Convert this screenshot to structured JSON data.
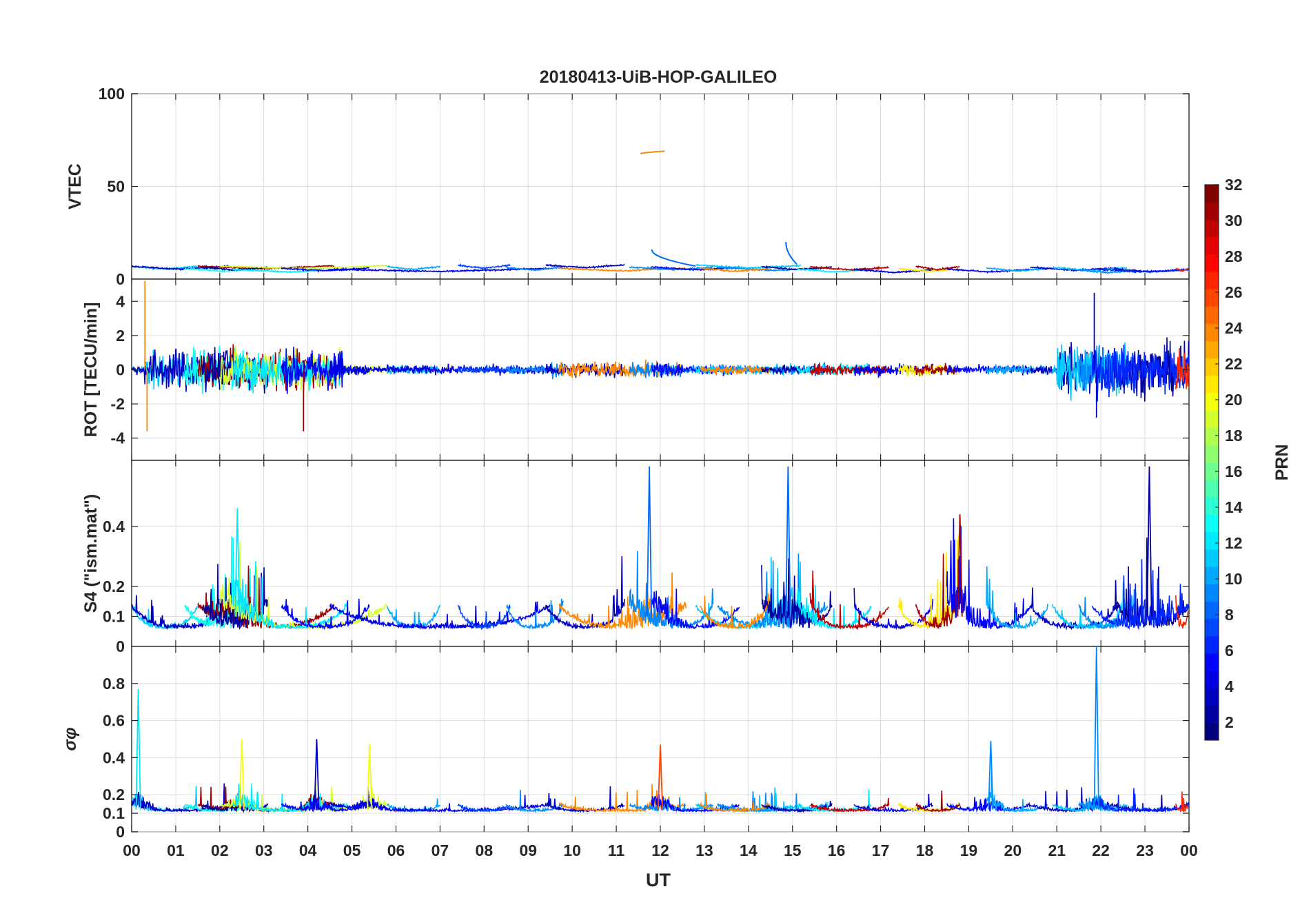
{
  "figure_title": "20180413-UiB-HOP-GALILEO",
  "chart_data": {
    "type": "line",
    "title": "20180413-UiB-HOP-GALILEO",
    "xlabel": "UT",
    "x_range_hours": [
      0,
      24
    ],
    "x_tick_labels": [
      "00",
      "01",
      "02",
      "03",
      "04",
      "05",
      "06",
      "07",
      "08",
      "09",
      "10",
      "11",
      "12",
      "13",
      "14",
      "15",
      "16",
      "17",
      "18",
      "19",
      "20",
      "21",
      "22",
      "23",
      "00"
    ],
    "grid": true,
    "colorbar": {
      "label": "PRN",
      "range": [
        1,
        32
      ],
      "tick_labels": [
        "2",
        "4",
        "6",
        "8",
        "10",
        "12",
        "14",
        "16",
        "18",
        "20",
        "22",
        "24",
        "26",
        "28",
        "30",
        "32"
      ],
      "colormap": "jet",
      "colors": [
        "#00008f",
        "#0000ff",
        "#0080ff",
        "#00ffff",
        "#80ff80",
        "#ffff00",
        "#ff8000",
        "#ff0000",
        "#800000"
      ]
    },
    "panels": [
      {
        "ylabel": "VTEC",
        "ylim": [
          0,
          100
        ],
        "y_tick_labels": [
          "0",
          "50",
          "100"
        ],
        "series_summary": "Background VTEC about 3 to 7 TECU across the day for all PRNs; isolated arc near 68-69 TECU at 11.5-12.1 UT (PRN ~24); arcs peaking near 15-20 TECU at 11.8 UT and 14.9 UT (PRN ~8)",
        "baseline": [
          [
            0,
            4.5
          ],
          [
            12,
            5.5
          ],
          [
            24,
            3.5
          ]
        ],
        "features": [
          {
            "x": [
              11.55,
              12.1
            ],
            "y": [
              67.5,
              69
            ],
            "prn": 24
          },
          {
            "x": [
              11.8,
              12.8
            ],
            "y": [
              16,
              7
            ],
            "prn": 8
          },
          {
            "x": [
              14.85,
              15.1
            ],
            "y": [
              20,
              8
            ],
            "prn": 8
          }
        ]
      },
      {
        "ylabel": "ROT [TECU/min]",
        "ylim": [
          -5.3,
          5.3
        ],
        "y_tick_labels": [
          "-4",
          "-2",
          "0",
          "2",
          "4"
        ],
        "series_summary": "ROT fluctuates around 0; larger activity 01-05 UT (about ±2 to ±3) and 21-23 UT (peak about 4.5 near 21.8 UT); spike to about 5 and -3.5 near 0.3 UT (PRN ~24)",
        "active_windows": [
          [
            0.3,
            4.8,
            2.0
          ],
          [
            9.5,
            12.5,
            0.8
          ],
          [
            15.5,
            18.5,
            0.6
          ],
          [
            21,
            24,
            2.5
          ]
        ],
        "spikes": [
          {
            "x": 0.3,
            "y": 5.2
          },
          {
            "x": 0.35,
            "y": -3.6
          },
          {
            "x": 3.9,
            "y": -3.6
          },
          {
            "x": 21.85,
            "y": 4.5
          },
          {
            "x": 21.9,
            "y": -2.8
          }
        ]
      },
      {
        "ylabel": "S4 (\"ism.mat\")",
        "ylim": [
          0,
          0.62
        ],
        "y_tick_labels": [
          "0",
          "0.1",
          "0.2",
          "0.4"
        ],
        "series_summary": "S4 baseline about 0.05-0.1; enhancements up to about 0.45 near 2.4 UT, 0.6 near 11.7 UT, 0.6 near 14.9 UT, 0.45 near 18.8 UT, 0.6 near 23.1 UT",
        "peaks": [
          {
            "x": 2.4,
            "y": 0.46
          },
          {
            "x": 11.75,
            "y": 0.6
          },
          {
            "x": 14.9,
            "y": 0.6
          },
          {
            "x": 18.8,
            "y": 0.44
          },
          {
            "x": 23.1,
            "y": 0.6
          }
        ]
      },
      {
        "ylabel": "σφ",
        "ylim": [
          0,
          1.0
        ],
        "y_tick_labels": [
          "0",
          "0.1",
          "0.2",
          "0.4",
          "0.6",
          "0.8"
        ],
        "series_summary": "Phase scintillation index mostly 0.1-0.15; spikes up to about 0.77 near 0.15 UT, 0.5 near 2.5 UT and 4.2 UT, 0.47 near 12 UT, 1.0 near 21.9 UT",
        "peaks": [
          {
            "x": 0.15,
            "y": 0.77
          },
          {
            "x": 2.5,
            "y": 0.5
          },
          {
            "x": 4.2,
            "y": 0.5
          },
          {
            "x": 5.4,
            "y": 0.47
          },
          {
            "x": 12.0,
            "y": 0.47
          },
          {
            "x": 19.5,
            "y": 0.49
          },
          {
            "x": 21.9,
            "y": 1.0
          }
        ]
      }
    ]
  }
}
